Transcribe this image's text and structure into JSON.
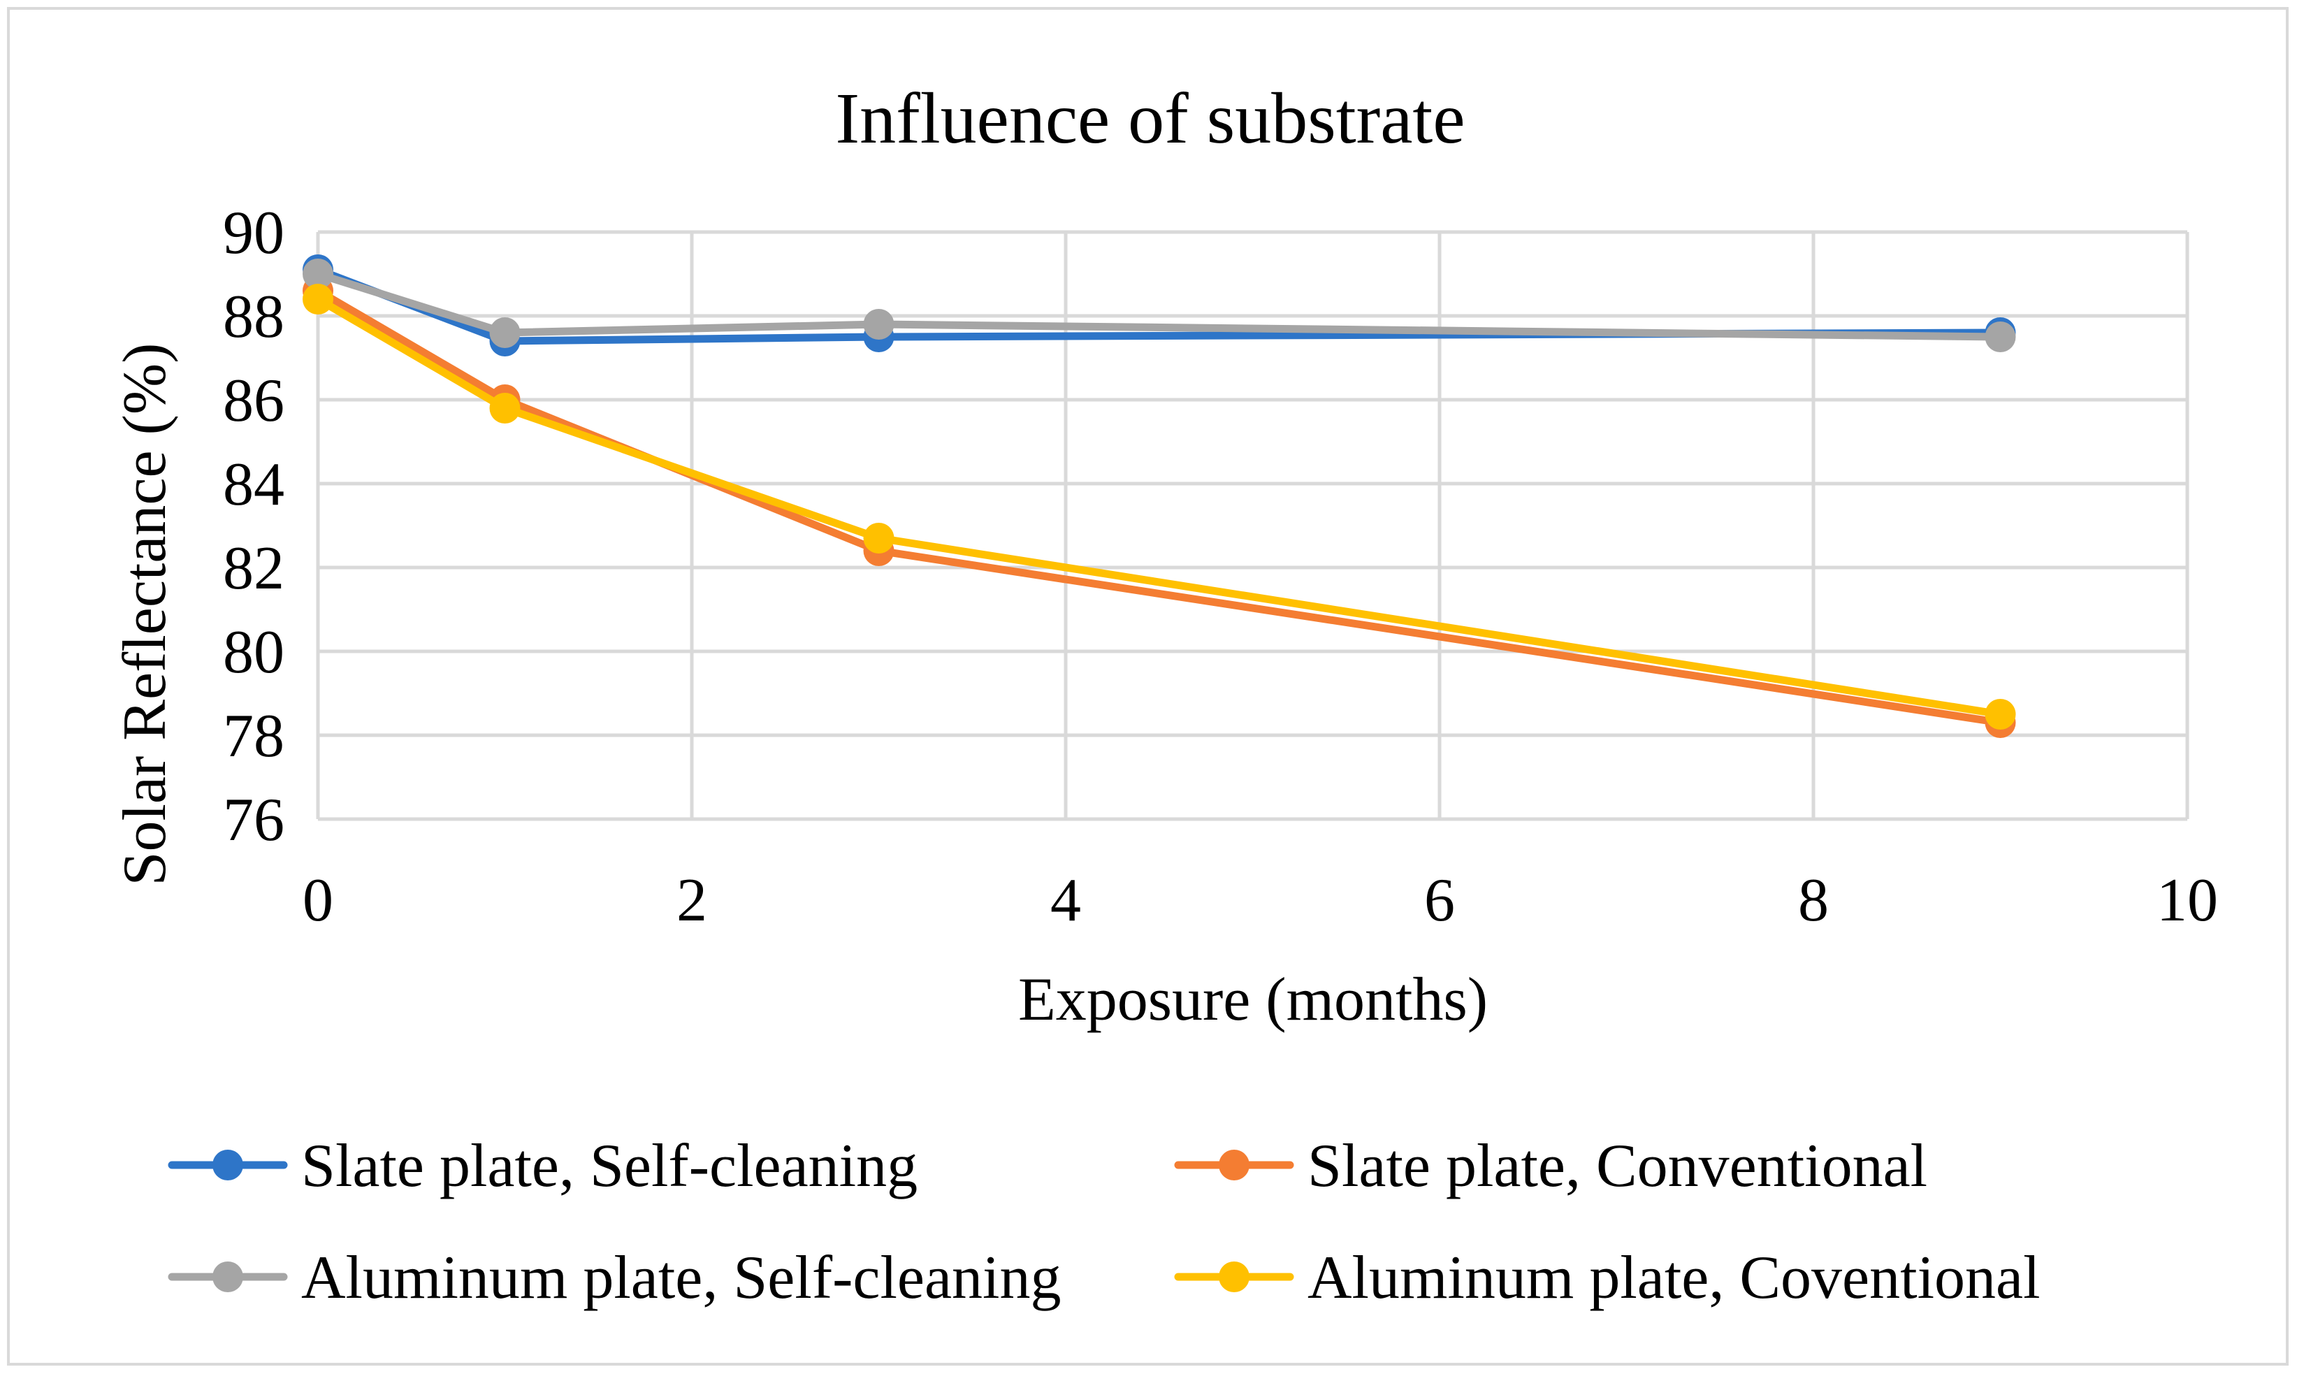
{
  "chart_data": {
    "type": "line",
    "title": "Influence of substrate",
    "xlabel": "Exposure (months)",
    "ylabel": "Solar  Reflectance (%)",
    "xlim": [
      0,
      10
    ],
    "ylim": [
      76,
      90
    ],
    "xticks": [
      "0",
      "2",
      "4",
      "6",
      "8",
      "10"
    ],
    "yticks": [
      "76",
      "78",
      "80",
      "82",
      "84",
      "86",
      "88",
      "90"
    ],
    "xtick_values": [
      0,
      2,
      4,
      6,
      8,
      10
    ],
    "ytick_values": [
      76,
      78,
      80,
      82,
      84,
      86,
      88,
      90
    ],
    "grid": true,
    "legend_position": "bottom",
    "series": [
      {
        "name": "Slate plate, Self-cleaning",
        "color": "#2e75c8",
        "x": [
          0,
          1,
          3,
          9
        ],
        "y": [
          89.1,
          87.4,
          87.5,
          87.6
        ]
      },
      {
        "name": "Slate plate, Conventional",
        "color": "#f47d32",
        "x": [
          0,
          1,
          3,
          9
        ],
        "y": [
          88.6,
          86.0,
          82.4,
          78.3
        ]
      },
      {
        "name": "Aluminum plate, Self-cleaning",
        "color": "#a5a5a5",
        "x": [
          0,
          1,
          3,
          9
        ],
        "y": [
          89.0,
          87.6,
          87.8,
          87.5
        ]
      },
      {
        "name": "Aluminum plate, Coventional",
        "color": "#ffc000",
        "x": [
          0,
          1,
          3,
          9
        ],
        "y": [
          88.4,
          85.8,
          82.7,
          78.5
        ]
      }
    ]
  }
}
